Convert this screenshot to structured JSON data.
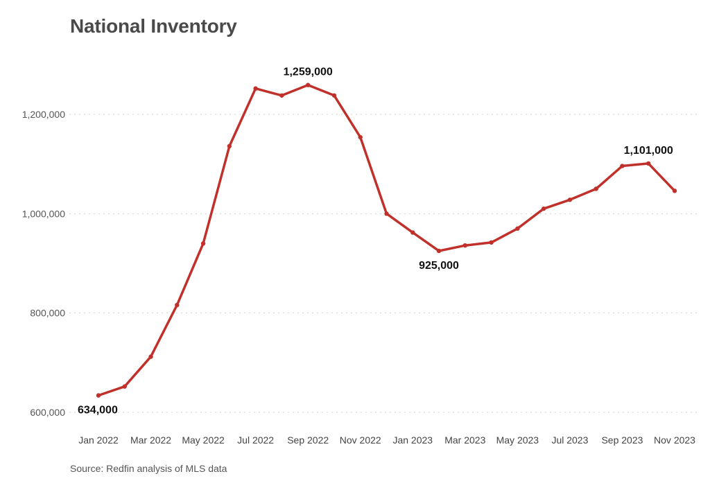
{
  "chart_data": {
    "type": "line",
    "title": "National Inventory",
    "source": "Source: Redfin analysis of MLS data",
    "xlabel": "",
    "ylabel": "",
    "color": "#c0312b",
    "categories": [
      "Jan 2022",
      "Feb 2022",
      "Mar 2022",
      "Apr 2022",
      "May 2022",
      "Jun 2022",
      "Jul 2022",
      "Aug 2022",
      "Sep 2022",
      "Oct 2022",
      "Nov 2022",
      "Dec 2022",
      "Jan 2023",
      "Feb 2023",
      "Mar 2023",
      "Apr 2023",
      "May 2023",
      "Jun 2023",
      "Jul 2023",
      "Aug 2023",
      "Sep 2023",
      "Oct 2023",
      "Nov 2023"
    ],
    "values": [
      634000,
      652000,
      712000,
      816000,
      940000,
      1136000,
      1252000,
      1238000,
      1259000,
      1238000,
      1154000,
      1000000,
      962000,
      925000,
      936000,
      942000,
      970000,
      1010000,
      1028000,
      1050000,
      1096000,
      1101000,
      1046000
    ],
    "x_tick_labels": [
      "Jan 2022",
      "Mar 2022",
      "May 2022",
      "Jul 2022",
      "Sep 2022",
      "Nov 2022",
      "Jan 2023",
      "Mar 2023",
      "May 2023",
      "Jul 2023",
      "Sep 2023",
      "Nov 2023"
    ],
    "x_tick_indices": [
      0,
      2,
      4,
      6,
      8,
      10,
      12,
      14,
      16,
      18,
      20,
      22
    ],
    "y_ticks": [
      600000,
      800000,
      1000000,
      1200000
    ],
    "y_tick_labels": [
      "600,000",
      "800,000",
      "1,000,000",
      "1,200,000"
    ],
    "ylim": [
      600000,
      1300000
    ],
    "grid": true,
    "annotations": [
      {
        "index": 0,
        "label": "634,000",
        "placement": "below"
      },
      {
        "index": 8,
        "label": "1,259,000",
        "placement": "above"
      },
      {
        "index": 13,
        "label": "925,000",
        "placement": "below"
      },
      {
        "index": 21,
        "label": "1,101,000",
        "placement": "above"
      }
    ]
  }
}
